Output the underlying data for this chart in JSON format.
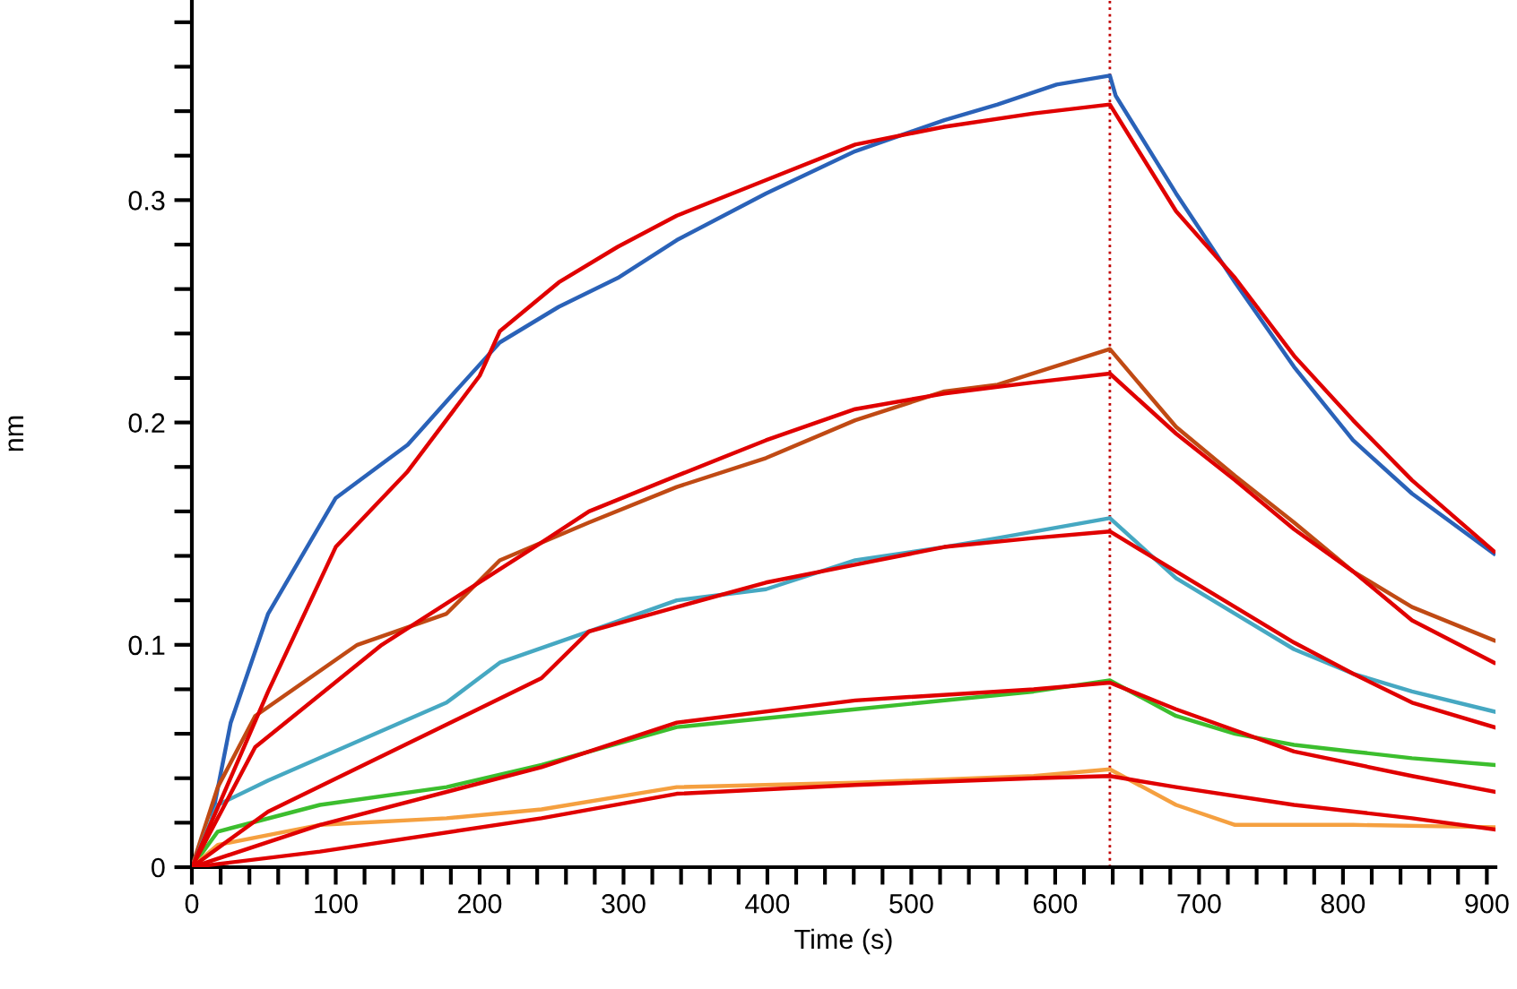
{
  "chart_data": {
    "type": "line",
    "xlabel": "Time (s)",
    "ylabel": "nm",
    "xlim": [
      0,
      906
    ],
    "ylim": [
      0,
      0.39
    ],
    "xticks": [
      0,
      {
        "value": 20,
        "label": null
      },
      {
        "value": 40,
        "label": null
      },
      {
        "value": 60,
        "label": null
      },
      {
        "value": 80,
        "label": null
      },
      100,
      {
        "value": 120,
        "label": null
      },
      {
        "value": 140,
        "label": null
      },
      {
        "value": 160,
        "label": null
      },
      {
        "value": 180,
        "label": null
      },
      200,
      {
        "value": 220,
        "label": null
      },
      {
        "value": 240,
        "label": null
      },
      {
        "value": 260,
        "label": null
      },
      {
        "value": 280,
        "label": null
      },
      300,
      {
        "value": 320,
        "label": null
      },
      {
        "value": 340,
        "label": null
      },
      {
        "value": 360,
        "label": null
      },
      {
        "value": 380,
        "label": null
      },
      400,
      {
        "value": 420,
        "label": null
      },
      {
        "value": 440,
        "label": null
      },
      {
        "value": 460,
        "label": null
      },
      {
        "value": 480,
        "label": null
      },
      500,
      {
        "value": 520,
        "label": null
      },
      {
        "value": 540,
        "label": null
      },
      {
        "value": 560,
        "label": null
      },
      {
        "value": 580,
        "label": null
      },
      600,
      {
        "value": 620,
        "label": null
      },
      {
        "value": 640,
        "label": null
      },
      {
        "value": 660,
        "label": null
      },
      {
        "value": 680,
        "label": null
      },
      700,
      {
        "value": 720,
        "label": null
      },
      {
        "value": 740,
        "label": null
      },
      {
        "value": 760,
        "label": null
      },
      {
        "value": 780,
        "label": null
      },
      800,
      {
        "value": 820,
        "label": null
      },
      {
        "value": 840,
        "label": null
      },
      {
        "value": 860,
        "label": null
      },
      {
        "value": 880,
        "label": null
      },
      900
    ],
    "yticks": [
      0,
      {
        "value": 0.02,
        "label": null
      },
      {
        "value": 0.04,
        "label": null
      },
      {
        "value": 0.06,
        "label": null
      },
      {
        "value": 0.08,
        "label": null
      },
      0.1,
      {
        "value": 0.12,
        "label": null
      },
      {
        "value": 0.14,
        "label": null
      },
      {
        "value": 0.16,
        "label": null
      },
      {
        "value": 0.18,
        "label": null
      },
      0.2,
      {
        "value": 0.22,
        "label": null
      },
      {
        "value": 0.24,
        "label": null
      },
      {
        "value": 0.26,
        "label": null
      },
      {
        "value": 0.28,
        "label": null
      },
      0.3,
      {
        "value": 0.32,
        "label": null
      },
      {
        "value": 0.34,
        "label": null
      },
      {
        "value": 0.36,
        "label": null
      },
      {
        "value": 0.38,
        "label": null
      }
    ],
    "grid": false,
    "marker": "none",
    "line_style": "solid",
    "ref_lines": [
      {
        "axis": "x",
        "value": 638,
        "color": "#c00000",
        "line_style": "dotted"
      }
    ],
    "series": [
      {
        "color": "#2a62b8",
        "x": [
          0,
          13,
          27,
          53,
          100,
          150,
          186,
          214,
          255,
          296,
          337,
          399,
          461,
          523,
          560,
          601,
          638,
          642,
          684,
          725,
          766,
          807,
          848,
          905
        ],
        "values": [
          0,
          0.019,
          0.065,
          0.114,
          0.166,
          0.19,
          0.216,
          0.236,
          0.252,
          0.265,
          0.282,
          0.303,
          0.322,
          0.336,
          0.343,
          0.352,
          0.356,
          0.347,
          0.303,
          0.263,
          0.225,
          0.192,
          0.168,
          0.141
        ]
      },
      {
        "color": "#c04a14",
        "x": [
          0,
          18,
          44,
          115,
          177,
          214,
          276,
          337,
          399,
          461,
          523,
          560,
          638,
          684,
          725,
          766,
          807,
          848,
          905
        ],
        "values": [
          0,
          0.036,
          0.068,
          0.1,
          0.114,
          0.138,
          0.155,
          0.171,
          0.184,
          0.201,
          0.214,
          0.217,
          0.233,
          0.198,
          0.176,
          0.155,
          0.133,
          0.117,
          0.102
        ]
      },
      {
        "color": "#46a8c2",
        "x": [
          0,
          18,
          53,
          177,
          214,
          276,
          337,
          399,
          461,
          523,
          560,
          638,
          684,
          725,
          766,
          807,
          848,
          905
        ],
        "values": [
          0,
          0.028,
          0.039,
          0.074,
          0.092,
          0.106,
          0.12,
          0.125,
          0.138,
          0.144,
          0.148,
          0.157,
          0.13,
          0.114,
          0.098,
          0.087,
          0.079,
          0.07
        ]
      },
      {
        "color": "#3cbe2e",
        "x": [
          0,
          18,
          89,
          177,
          243,
          337,
          461,
          585,
          638,
          684,
          725,
          766,
          807,
          848,
          905
        ],
        "values": [
          0,
          0.016,
          0.028,
          0.036,
          0.046,
          0.063,
          0.071,
          0.079,
          0.084,
          0.068,
          0.06,
          0.055,
          0.052,
          0.049,
          0.046
        ]
      },
      {
        "color": "#f5a040",
        "x": [
          0,
          18,
          89,
          177,
          243,
          337,
          461,
          585,
          638,
          684,
          725,
          807,
          905
        ],
        "values": [
          0,
          0.01,
          0.019,
          0.022,
          0.026,
          0.036,
          0.038,
          0.041,
          0.044,
          0.028,
          0.019,
          0.019,
          0.018
        ]
      },
      {
        "color": "#e00000",
        "x": [
          0,
          53,
          100,
          150,
          200,
          214,
          255,
          296,
          337,
          399,
          461,
          523,
          585,
          638,
          684,
          725,
          766,
          807,
          848,
          905
        ],
        "values": [
          0,
          0.079,
          0.144,
          0.178,
          0.221,
          0.241,
          0.263,
          0.279,
          0.293,
          0.309,
          0.325,
          0.333,
          0.339,
          0.343,
          0.295,
          0.265,
          0.23,
          0.201,
          0.174,
          0.142
        ]
      },
      {
        "color": "#e00000",
        "x": [
          0,
          44,
          132,
          243,
          276,
          337,
          399,
          461,
          523,
          585,
          638,
          684,
          725,
          766,
          807,
          848,
          905
        ],
        "values": [
          0,
          0.054,
          0.1,
          0.146,
          0.16,
          0.176,
          0.192,
          0.206,
          0.213,
          0.218,
          0.222,
          0.195,
          0.174,
          0.152,
          0.133,
          0.111,
          0.092
        ]
      },
      {
        "color": "#e00000",
        "x": [
          0,
          53,
          243,
          276,
          337,
          399,
          461,
          523,
          585,
          638,
          684,
          725,
          766,
          807,
          848,
          905
        ],
        "values": [
          0,
          0.025,
          0.085,
          0.106,
          0.117,
          0.128,
          0.136,
          0.144,
          0.148,
          0.151,
          0.133,
          0.117,
          0.101,
          0.087,
          0.074,
          0.063
        ]
      },
      {
        "color": "#e00000",
        "x": [
          0,
          89,
          243,
          337,
          461,
          585,
          638,
          684,
          766,
          848,
          905
        ],
        "values": [
          0,
          0.019,
          0.045,
          0.065,
          0.075,
          0.08,
          0.083,
          0.071,
          0.052,
          0.041,
          0.034
        ]
      },
      {
        "color": "#e00000",
        "x": [
          0,
          89,
          243,
          337,
          461,
          585,
          638,
          684,
          766,
          848,
          905
        ],
        "values": [
          0,
          0.007,
          0.022,
          0.033,
          0.037,
          0.04,
          0.041,
          0.036,
          0.028,
          0.022,
          0.017
        ]
      }
    ]
  }
}
